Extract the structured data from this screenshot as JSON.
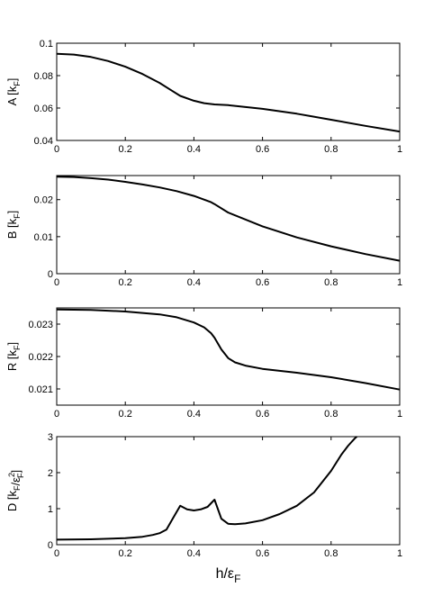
{
  "chart_data": [
    {
      "type": "line",
      "ylabel": {
        "main": "A [k",
        "sub": "F",
        "close": "]"
      },
      "xlim": [
        0,
        1
      ],
      "ylim": [
        0.04,
        0.1
      ],
      "xticks": [
        "0",
        "0.2",
        "0.4",
        "0.6",
        "0.8",
        "1"
      ],
      "yticks": [
        {
          "v": 0.04,
          "t": "0.04"
        },
        {
          "v": 0.06,
          "t": "0.06"
        },
        {
          "v": 0.08,
          "t": "0.08"
        },
        {
          "v": 0.1,
          "t": "0.1"
        }
      ],
      "x": [
        0,
        0.05,
        0.1,
        0.15,
        0.2,
        0.25,
        0.3,
        0.33,
        0.36,
        0.4,
        0.43,
        0.46,
        0.5,
        0.6,
        0.7,
        0.8,
        0.9,
        1.0
      ],
      "y": [
        0.0935,
        0.093,
        0.0915,
        0.089,
        0.0855,
        0.081,
        0.0755,
        0.0715,
        0.0675,
        0.0645,
        0.063,
        0.0622,
        0.0618,
        0.0595,
        0.0565,
        0.0528,
        0.049,
        0.0455
      ]
    },
    {
      "type": "line",
      "ylabel": {
        "main": "B [k",
        "sub": "F",
        "close": "]"
      },
      "xlim": [
        0,
        1
      ],
      "ylim": [
        0,
        0.0265
      ],
      "xticks": [
        "0",
        "0.2",
        "0.4",
        "0.6",
        "0.8",
        "1"
      ],
      "yticks": [
        {
          "v": 0,
          "t": "0"
        },
        {
          "v": 0.01,
          "t": "0.01"
        },
        {
          "v": 0.02,
          "t": "0.02"
        }
      ],
      "x": [
        0,
        0.05,
        0.1,
        0.15,
        0.2,
        0.25,
        0.3,
        0.35,
        0.4,
        0.45,
        0.46,
        0.5,
        0.6,
        0.7,
        0.8,
        0.9,
        1.0
      ],
      "y": [
        0.0262,
        0.0261,
        0.0258,
        0.0254,
        0.0248,
        0.0241,
        0.0233,
        0.0223,
        0.021,
        0.0193,
        0.0188,
        0.0165,
        0.0128,
        0.0098,
        0.0074,
        0.0053,
        0.0035
      ]
    },
    {
      "type": "line",
      "ylabel": {
        "main": "R [k",
        "sub": "F",
        "close": "]"
      },
      "xlim": [
        0,
        1
      ],
      "ylim": [
        0.0205,
        0.0235
      ],
      "xticks": [
        "0",
        "0.2",
        "0.4",
        "0.6",
        "0.8",
        "1"
      ],
      "yticks": [
        {
          "v": 0.021,
          "t": "0.021"
        },
        {
          "v": 0.022,
          "t": "0.022"
        },
        {
          "v": 0.023,
          "t": "0.023"
        }
      ],
      "x": [
        0,
        0.1,
        0.2,
        0.3,
        0.35,
        0.4,
        0.43,
        0.45,
        0.46,
        0.47,
        0.48,
        0.5,
        0.52,
        0.55,
        0.6,
        0.7,
        0.8,
        0.9,
        1.0
      ],
      "y": [
        0.02345,
        0.02344,
        0.02339,
        0.0233,
        0.02321,
        0.02305,
        0.0229,
        0.02272,
        0.02258,
        0.0224,
        0.02222,
        0.02195,
        0.02182,
        0.02172,
        0.02162,
        0.0215,
        0.02136,
        0.02118,
        0.02098
      ]
    },
    {
      "type": "line",
      "ylabel": {
        "main": "D [k",
        "sub": "F",
        "mid": "/ε",
        "sup": "2",
        "sub2": "F",
        "close": "]"
      },
      "xlabel": {
        "main": "h/ε",
        "sub": "F"
      },
      "xlim": [
        0,
        1
      ],
      "ylim": [
        0,
        3
      ],
      "xticks": [
        "0",
        "0.2",
        "0.4",
        "0.6",
        "0.8",
        "1"
      ],
      "yticks": [
        {
          "v": 0,
          "t": "0"
        },
        {
          "v": 1,
          "t": "1"
        },
        {
          "v": 2,
          "t": "2"
        },
        {
          "v": 3,
          "t": "3"
        }
      ],
      "x": [
        0,
        0.1,
        0.2,
        0.25,
        0.28,
        0.3,
        0.32,
        0.34,
        0.36,
        0.38,
        0.4,
        0.42,
        0.44,
        0.46,
        0.48,
        0.5,
        0.52,
        0.55,
        0.6,
        0.65,
        0.7,
        0.75,
        0.8,
        0.83,
        0.85,
        0.87,
        0.875
      ],
      "y": [
        0.14,
        0.15,
        0.18,
        0.22,
        0.27,
        0.32,
        0.42,
        0.75,
        1.08,
        0.98,
        0.95,
        0.98,
        1.05,
        1.25,
        0.72,
        0.58,
        0.57,
        0.59,
        0.68,
        0.85,
        1.08,
        1.45,
        2.05,
        2.5,
        2.75,
        2.96,
        3.0
      ]
    }
  ]
}
